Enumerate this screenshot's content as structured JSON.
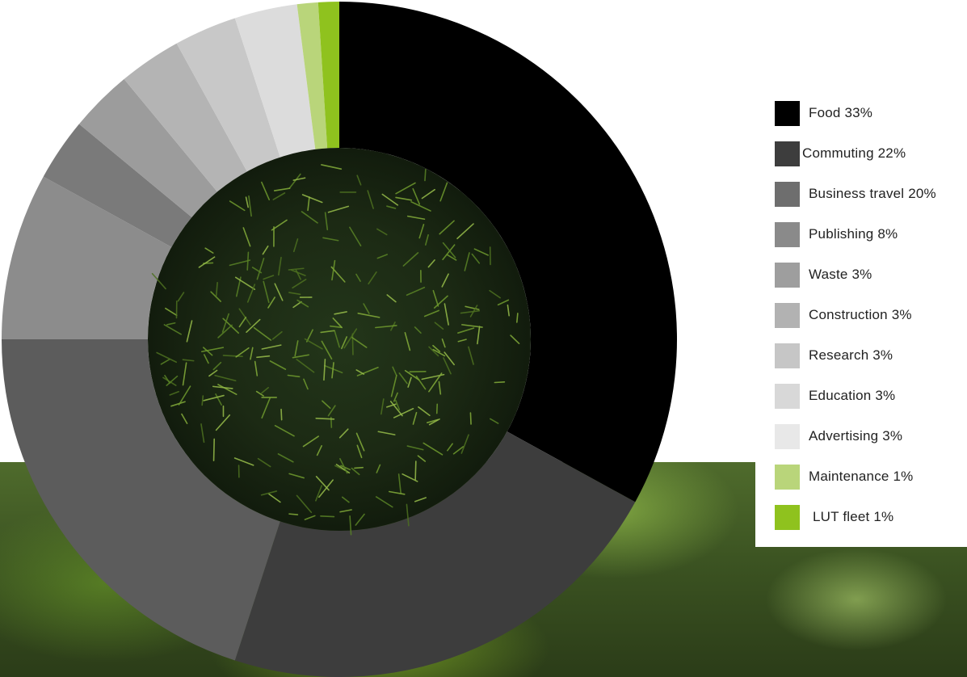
{
  "chart_data": {
    "type": "pie",
    "variant": "donut",
    "legend_position": "right",
    "categories": [
      "Food",
      "Commuting",
      "Business travel",
      "Publishing",
      "Waste",
      "Construction",
      "Research",
      "Education",
      "Advertising",
      "Maintenance",
      "LUT fleet"
    ],
    "values": [
      33,
      22,
      20,
      8,
      3,
      3,
      3,
      3,
      3,
      1,
      1
    ],
    "colors": [
      "#000000",
      "#3d3d3d",
      "#5c5c5c",
      "#8c8c8c",
      "#7a7a7a",
      "#9c9c9c",
      "#b4b4b4",
      "#c8c8c8",
      "#dcdcdc",
      "#b9d57a",
      "#8fc21e"
    ],
    "legend_swatch_colors": [
      "#000000",
      "#3d3d3d",
      "#6e6e6e",
      "#8a8a8a",
      "#9e9e9e",
      "#b2b2b2",
      "#c6c6c6",
      "#d8d8d8",
      "#e8e8e8",
      "#b9d57a",
      "#8fc21e"
    ]
  },
  "legend": {
    "labels": [
      "Food 33%",
      "Commuting 22%",
      "Business travel 20%",
      "Publishing 8%",
      "Waste 3%",
      "Construction 3%",
      "Research 3%",
      "Education 3%",
      "Advertising 3%",
      "Maintenance 1%",
      "LUT fleet 1%"
    ]
  },
  "center_image": {
    "description_icon": "spruce-branches-photo"
  },
  "background_image": {
    "description_icon": "blurred-forest-photo"
  }
}
